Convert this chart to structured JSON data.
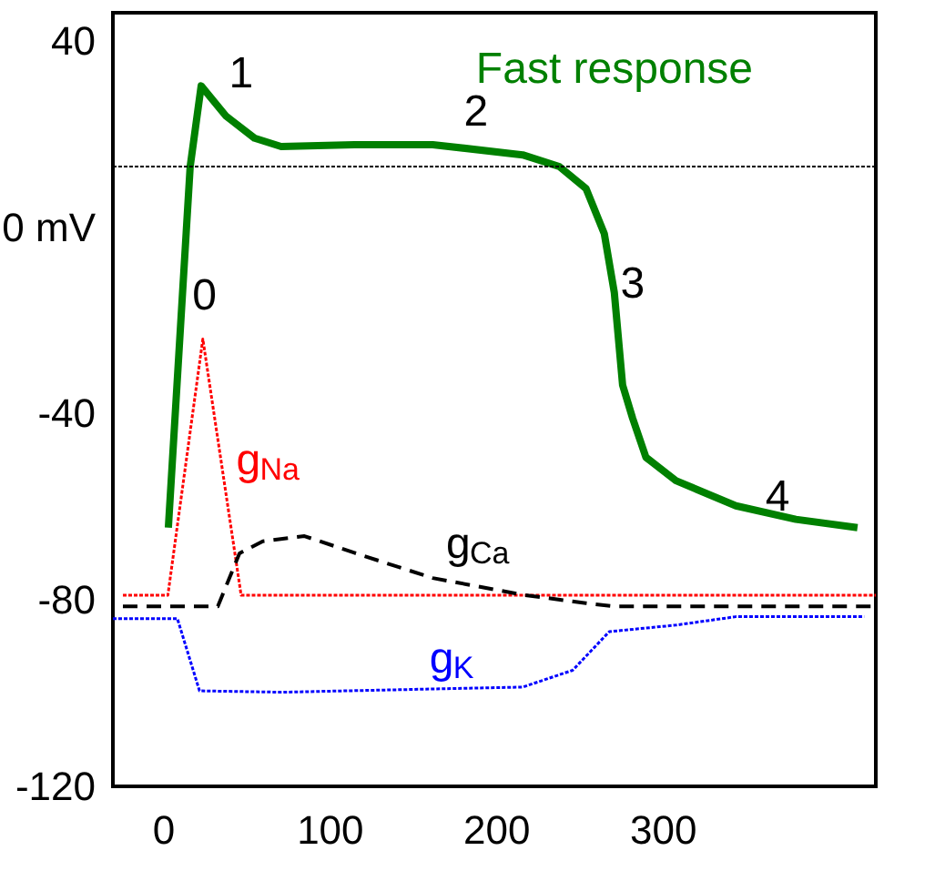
{
  "chart_data": {
    "type": "line",
    "xlim": [
      -30,
      428
    ],
    "ylim": [
      -120,
      46
    ],
    "xticks": [
      0,
      100,
      200,
      300
    ],
    "yticks": [
      40,
      {
        "value": 0,
        "label": "0 mV"
      },
      -40,
      -80,
      -120
    ],
    "grid": false,
    "marker": "none",
    "ref_lines": [
      {
        "axis": "y",
        "value": 13,
        "color": "#000000",
        "line_style": "dotted"
      }
    ],
    "series": [
      {
        "name": "Fast response",
        "color": "#008000",
        "line_style": "solid",
        "x": [
          3.3,
          16.4,
          23,
          38,
          55,
          71,
          115,
          162,
          216,
          238,
          254,
          265,
          271,
          276,
          282,
          290,
          308,
          344,
          380,
          417
        ],
        "values": [
          -64.5,
          13,
          30.3,
          23.8,
          19.1,
          17.3,
          17.7,
          17.7,
          15.5,
          13,
          8.3,
          -1.4,
          -14,
          -33.9,
          -41,
          -49.4,
          -54.4,
          -59.8,
          -62.7,
          -64.5
        ]
      },
      {
        "name": "g$_{Na}$",
        "color": "#ff0000",
        "line_style": "dotted",
        "x": [
          -24,
          3,
          24,
          47,
          428
        ],
        "values": [
          -79,
          -79,
          -24,
          -79,
          -79
        ]
      },
      {
        "name": "g$_{Ca}$",
        "color": "#000000",
        "line_style": "dashed",
        "x": [
          -24,
          33,
          46,
          60,
          85,
          115,
          162,
          216,
          254,
          271,
          428
        ],
        "values": [
          -81.4,
          -81.4,
          -70,
          -67.4,
          -66.3,
          -69.9,
          -75.3,
          -78.9,
          -80.7,
          -81.4,
          -81.4
        ]
      },
      {
        "name": "g$_{K}$",
        "color": "#0000ff",
        "line_style": "dotted",
        "x": [
          -30,
          8.7,
          22,
          71,
          216,
          246,
          268,
          308,
          344,
          421
        ],
        "values": [
          -84,
          -84,
          -99.5,
          -99.8,
          -98.7,
          -95.1,
          -86.8,
          -85.4,
          -83.6,
          -83.6
        ]
      }
    ],
    "annotations": [
      "0",
      "1",
      "2",
      "3",
      "4"
    ]
  }
}
